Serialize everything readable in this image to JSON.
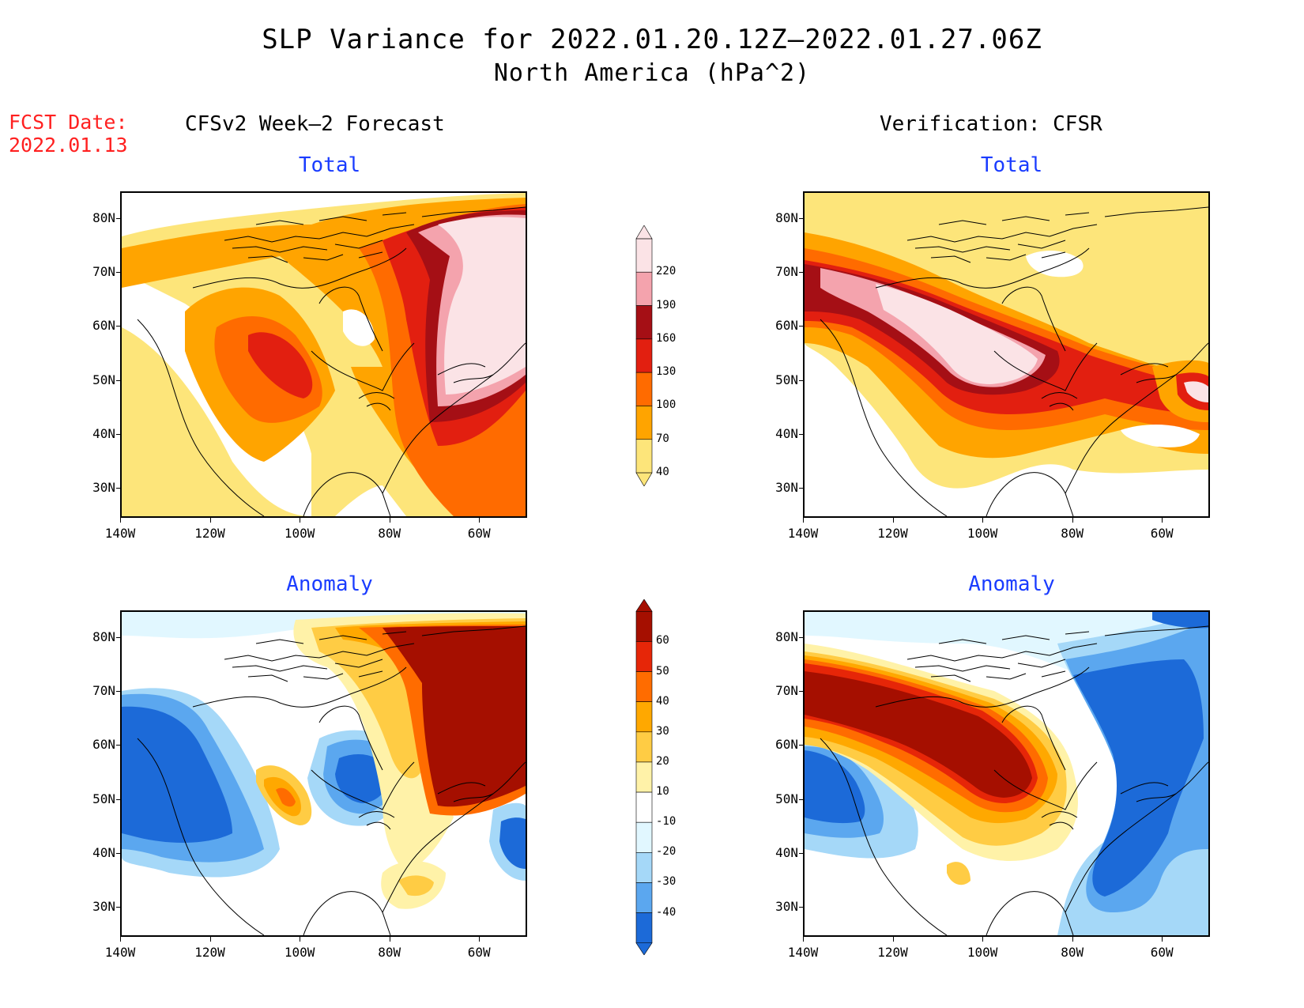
{
  "title": "SLP Variance for 2022.01.20.12Z—2022.01.27.06Z",
  "subtitle": "North America (hPa^2)",
  "fcst_label": "FCST Date:",
  "fcst_date": "2022.01.13",
  "left_column_title": "CFSv2 Week—2 Forecast",
  "right_column_title": "Verification: CFSR",
  "panels": {
    "fcst_total": {
      "title": "Total"
    },
    "fcst_anom": {
      "title": "Anomaly"
    },
    "ver_total": {
      "title": "Total"
    },
    "ver_anom": {
      "title": "Anomaly"
    }
  },
  "axes": {
    "lat_ticks": [
      "80N",
      "70N",
      "60N",
      "50N",
      "40N",
      "30N"
    ],
    "lon_ticks": [
      "140W",
      "120W",
      "100W",
      "80W",
      "60W"
    ],
    "lat_range": [
      25,
      85
    ],
    "lon_range": [
      -140,
      -50
    ]
  },
  "colorbars": {
    "total": {
      "labels": [
        "220",
        "190",
        "160",
        "130",
        "100",
        "70",
        "40"
      ],
      "colors": [
        "#fbe3e6",
        "#f4a3ad",
        "#a50f15",
        "#e21f10",
        "#ff6b00",
        "#ffa400",
        "#fde57a"
      ]
    },
    "anomaly": {
      "labels": [
        "60",
        "50",
        "40",
        "30",
        "20",
        "10",
        "-10",
        "-20",
        "-30",
        "-40"
      ],
      "colors": [
        "#a50f00",
        "#e62608",
        "#ff6c00",
        "#ffa800",
        "#ffcc44",
        "#fff2a8",
        "#ffffff",
        "#e1f7ff",
        "#a5d8f8",
        "#5ba7ef",
        "#1c6ad8"
      ]
    }
  }
}
